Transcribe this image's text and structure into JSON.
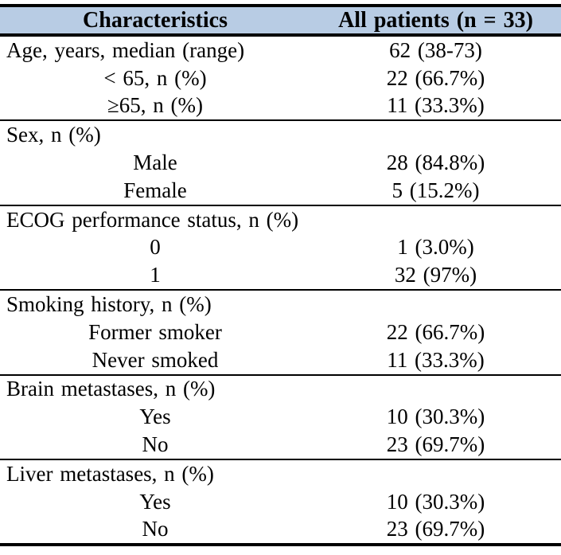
{
  "table": {
    "colors": {
      "header_bg": "#b8cce4",
      "border": "#000000",
      "text": "#000000"
    },
    "header": {
      "characteristics": "Characteristics",
      "all_patients": "All patients (n = 33)"
    },
    "sections": [
      {
        "rows": [
          {
            "label": "Age, years, median (range)",
            "value": "62 (38-73)",
            "indent": false
          },
          {
            "label": "< 65, n (%)",
            "value": "22 (66.7%)",
            "indent": true
          },
          {
            "label": "≥65, n (%)",
            "value": "11 (33.3%)",
            "indent": true
          }
        ]
      },
      {
        "rows": [
          {
            "label": "Sex, n (%)",
            "value": "",
            "indent": false
          },
          {
            "label": "Male",
            "value": "28 (84.8%)",
            "indent": true
          },
          {
            "label": "Female",
            "value": "5 (15.2%)",
            "indent": true
          }
        ]
      },
      {
        "rows": [
          {
            "label": "ECOG performance status, n (%)",
            "value": "",
            "indent": false
          },
          {
            "label": "0",
            "value": "1 (3.0%)",
            "indent": true
          },
          {
            "label": "1",
            "value": "32 (97%)",
            "indent": true
          }
        ]
      },
      {
        "rows": [
          {
            "label": "Smoking history, n (%)",
            "value": "",
            "indent": false
          },
          {
            "label": "Former smoker",
            "value": "22 (66.7%)",
            "indent": true
          },
          {
            "label": "Never smoked",
            "value": "11 (33.3%)",
            "indent": true
          }
        ]
      },
      {
        "rows": [
          {
            "label": "Brain metastases, n (%)",
            "value": "",
            "indent": false
          },
          {
            "label": "Yes",
            "value": "10 (30.3%)",
            "indent": true
          },
          {
            "label": "No",
            "value": "23 (69.7%)",
            "indent": true
          }
        ]
      },
      {
        "rows": [
          {
            "label": "Liver metastases, n (%)",
            "value": "",
            "indent": false
          },
          {
            "label": "Yes",
            "value": "10 (30.3%)",
            "indent": true
          },
          {
            "label": "No",
            "value": "23 (69.7%)",
            "indent": true
          }
        ]
      }
    ]
  }
}
